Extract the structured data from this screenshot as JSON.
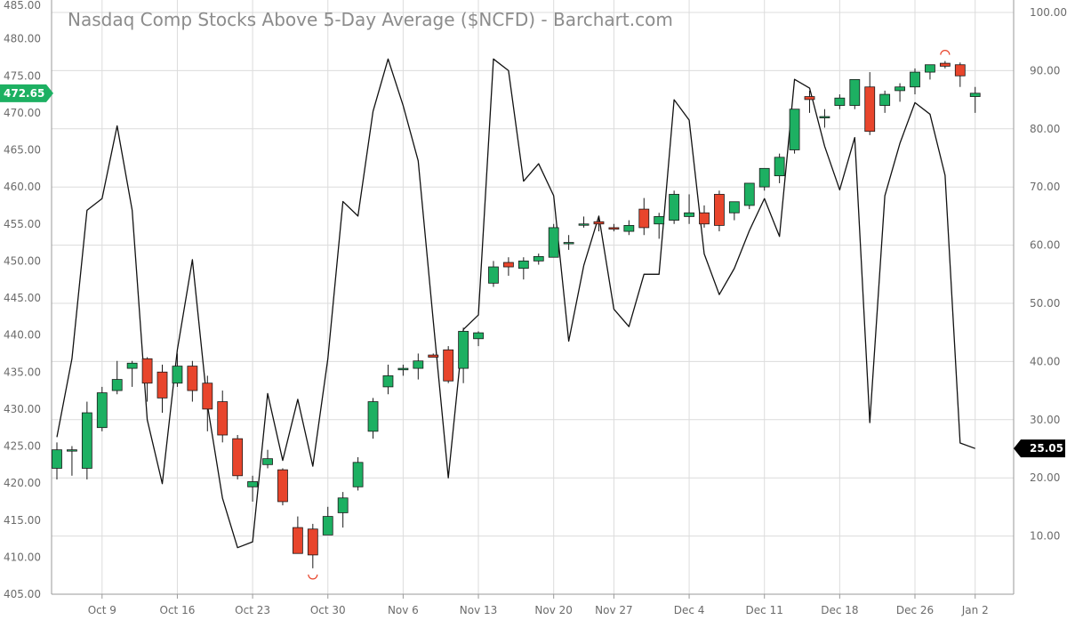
{
  "chart_data": {
    "type": "candlestick+line",
    "title": "Nasdaq Comp Stocks Above 5-Day Average ($NCFD) - Barchart.com",
    "x_ticks": [
      {
        "label": "Oct 9",
        "index": 3
      },
      {
        "label": "Oct 16",
        "index": 8
      },
      {
        "label": "Oct 23",
        "index": 13
      },
      {
        "label": "Oct 30",
        "index": 18
      },
      {
        "label": "Nov 6",
        "index": 23
      },
      {
        "label": "Nov 13",
        "index": 28
      },
      {
        "label": "Nov 20",
        "index": 33
      },
      {
        "label": "Nov 27",
        "index": 37
      },
      {
        "label": "Dec 4",
        "index": 42
      },
      {
        "label": "Dec 11",
        "index": 47
      },
      {
        "label": "Dec 18",
        "index": 52
      },
      {
        "label": "Dec 26",
        "index": 57
      },
      {
        "label": "Jan 2",
        "index": 61
      }
    ],
    "left_axis": {
      "min": 405,
      "max": 485,
      "ticks": [
        "405.00",
        "410.00",
        "415.00",
        "420.00",
        "425.00",
        "430.00",
        "435.00",
        "440.00",
        "445.00",
        "450.00",
        "455.00",
        "460.00",
        "465.00",
        "470.00",
        "475.00",
        "480.00",
        "485.00"
      ]
    },
    "right_axis": {
      "min": 0,
      "max": 100,
      "ticks": [
        "10.00",
        "20.00",
        "30.00",
        "40.00",
        "50.00",
        "60.00",
        "70.00",
        "80.00",
        "90.00",
        "100.00"
      ]
    },
    "last_price_label": "472.65",
    "last_line_label": "25.05",
    "colors": {
      "up": "#1db062",
      "down": "#e8452c",
      "line": "#111111",
      "grid": "#dcdcdc",
      "price_flag": "#1db062",
      "line_flag": "#000000",
      "marker": "#e8452c"
    },
    "candles": [
      {
        "o": 422.0,
        "h": 425.5,
        "l": 420.5,
        "c": 424.5
      },
      {
        "o": 424.5,
        "h": 425.0,
        "l": 421.0,
        "c": 424.5
      },
      {
        "o": 422.0,
        "h": 431.0,
        "l": 420.5,
        "c": 429.5
      },
      {
        "o": 427.5,
        "h": 433.0,
        "l": 427.0,
        "c": 432.2
      },
      {
        "o": 432.5,
        "h": 436.5,
        "l": 432.0,
        "c": 434.0
      },
      {
        "o": 435.5,
        "h": 436.5,
        "l": 433.0,
        "c": 436.2
      },
      {
        "o": 436.8,
        "h": 437.0,
        "l": 431.0,
        "c": 433.5
      },
      {
        "o": 435.0,
        "h": 436.0,
        "l": 429.5,
        "c": 431.5
      },
      {
        "o": 433.5,
        "h": 437.5,
        "l": 433.0,
        "c": 435.8
      },
      {
        "o": 435.8,
        "h": 436.5,
        "l": 431.0,
        "c": 432.5
      },
      {
        "o": 433.5,
        "h": 434.5,
        "l": 427.0,
        "c": 430.0
      },
      {
        "o": 431.0,
        "h": 432.5,
        "l": 425.5,
        "c": 426.5
      },
      {
        "o": 426.0,
        "h": 426.5,
        "l": 420.5,
        "c": 421.0
      },
      {
        "o": 419.5,
        "h": 421.0,
        "l": 417.5,
        "c": 420.2
      },
      {
        "o": 422.5,
        "h": 424.5,
        "l": 422.0,
        "c": 423.3
      },
      {
        "o": 421.8,
        "h": 422.0,
        "l": 417.0,
        "c": 417.5
      },
      {
        "o": 414.0,
        "h": 415.5,
        "l": 410.5,
        "c": 410.5
      },
      {
        "o": 413.8,
        "h": 414.5,
        "l": 408.5,
        "c": 410.3
      },
      {
        "o": 413.0,
        "h": 416.8,
        "l": 413.0,
        "c": 415.5
      },
      {
        "o": 416.0,
        "h": 418.8,
        "l": 414.0,
        "c": 418.0
      },
      {
        "o": 419.5,
        "h": 423.5,
        "l": 419.0,
        "c": 422.8
      },
      {
        "o": 427.0,
        "h": 431.5,
        "l": 426.0,
        "c": 431.0
      },
      {
        "o": 433.0,
        "h": 436.0,
        "l": 432.0,
        "c": 434.5
      },
      {
        "o": 435.3,
        "h": 436.0,
        "l": 434.5,
        "c": 435.5
      },
      {
        "o": 435.5,
        "h": 437.5,
        "l": 434.0,
        "c": 436.5
      },
      {
        "o": 437.3,
        "h": 437.5,
        "l": 437.0,
        "c": 437.0
      },
      {
        "o": 438.0,
        "h": 438.5,
        "l": 433.5,
        "c": 433.8
      },
      {
        "o": 435.5,
        "h": 441.0,
        "l": 433.5,
        "c": 440.5
      },
      {
        "o": 439.5,
        "h": 440.5,
        "l": 438.5,
        "c": 440.3
      },
      {
        "o": 447.0,
        "h": 450.0,
        "l": 446.5,
        "c": 449.2
      },
      {
        "o": 449.8,
        "h": 450.5,
        "l": 448.0,
        "c": 449.2
      },
      {
        "o": 449.0,
        "h": 450.5,
        "l": 447.5,
        "c": 450.0
      },
      {
        "o": 450.0,
        "h": 451.0,
        "l": 449.5,
        "c": 450.6
      },
      {
        "o": 450.5,
        "h": 455.0,
        "l": 450.5,
        "c": 454.5
      },
      {
        "o": 452.5,
        "h": 453.5,
        "l": 451.5,
        "c": 452.5
      },
      {
        "o": 455.0,
        "h": 456.0,
        "l": 454.5,
        "c": 455.0
      },
      {
        "o": 455.3,
        "h": 455.8,
        "l": 454.0,
        "c": 455.0
      },
      {
        "o": 454.5,
        "h": 455.0,
        "l": 454.0,
        "c": 454.3
      },
      {
        "o": 454.0,
        "h": 455.5,
        "l": 453.5,
        "c": 454.8
      },
      {
        "o": 457.0,
        "h": 458.5,
        "l": 453.5,
        "c": 454.5
      },
      {
        "o": 455.0,
        "h": 456.5,
        "l": 453.0,
        "c": 456.0
      },
      {
        "o": 455.5,
        "h": 459.5,
        "l": 455.0,
        "c": 459.0
      },
      {
        "o": 456.0,
        "h": 459.0,
        "l": 455.0,
        "c": 456.5
      },
      {
        "o": 456.5,
        "h": 457.5,
        "l": 454.5,
        "c": 455.0
      },
      {
        "o": 459.0,
        "h": 459.5,
        "l": 454.0,
        "c": 454.8
      },
      {
        "o": 456.5,
        "h": 458.0,
        "l": 455.5,
        "c": 458.0
      },
      {
        "o": 457.5,
        "h": 460.5,
        "l": 457.0,
        "c": 460.5
      },
      {
        "o": 460.0,
        "h": 462.5,
        "l": 459.5,
        "c": 462.5
      },
      {
        "o": 461.5,
        "h": 464.5,
        "l": 460.5,
        "c": 464.0
      },
      {
        "o": 465.0,
        "h": 470.5,
        "l": 464.5,
        "c": 470.5
      },
      {
        "o": 472.2,
        "h": 473.0,
        "l": 470.0,
        "c": 471.8
      },
      {
        "o": 469.5,
        "h": 470.5,
        "l": 468.0,
        "c": 469.5
      },
      {
        "o": 471.0,
        "h": 472.5,
        "l": 470.5,
        "c": 472.0
      },
      {
        "o": 471.0,
        "h": 474.5,
        "l": 470.5,
        "c": 474.5
      },
      {
        "o": 473.5,
        "h": 475.5,
        "l": 467.0,
        "c": 467.5
      },
      {
        "o": 471.0,
        "h": 473.0,
        "l": 470.0,
        "c": 472.5
      },
      {
        "o": 473.0,
        "h": 474.0,
        "l": 471.5,
        "c": 473.5
      },
      {
        "o": 473.5,
        "h": 476.0,
        "l": 472.5,
        "c": 475.5
      },
      {
        "o": 475.5,
        "h": 476.5,
        "l": 474.5,
        "c": 476.5
      },
      {
        "o": 476.7,
        "h": 477.0,
        "l": 476.0,
        "c": 476.3
      },
      {
        "o": 476.5,
        "h": 476.8,
        "l": 473.5,
        "c": 475.0
      },
      {
        "o": 472.2,
        "h": 473.5,
        "l": 470.0,
        "c": 472.65
      }
    ],
    "line_values": [
      27.0,
      40.5,
      66.0,
      68.0,
      80.5,
      66.0,
      30.0,
      19.0,
      42.0,
      57.5,
      32.5,
      16.5,
      8.0,
      9.0,
      34.5,
      23.0,
      33.5,
      22.0,
      40.5,
      67.5,
      65.0,
      83.0,
      92.0,
      84.0,
      74.5,
      47.0,
      20.0,
      45.5,
      48.0,
      92.0,
      90.0,
      71.0,
      74.0,
      68.5,
      43.5,
      56.5,
      65.0,
      49.0,
      46.0,
      55.0,
      55.0,
      85.0,
      81.5,
      58.5,
      51.5,
      56.0,
      62.5,
      68.0,
      61.5,
      88.5,
      87.0,
      77.0,
      69.5,
      78.5,
      29.5,
      68.5,
      77.5,
      84.5,
      82.5,
      72.0,
      26.0,
      25.05
    ]
  }
}
